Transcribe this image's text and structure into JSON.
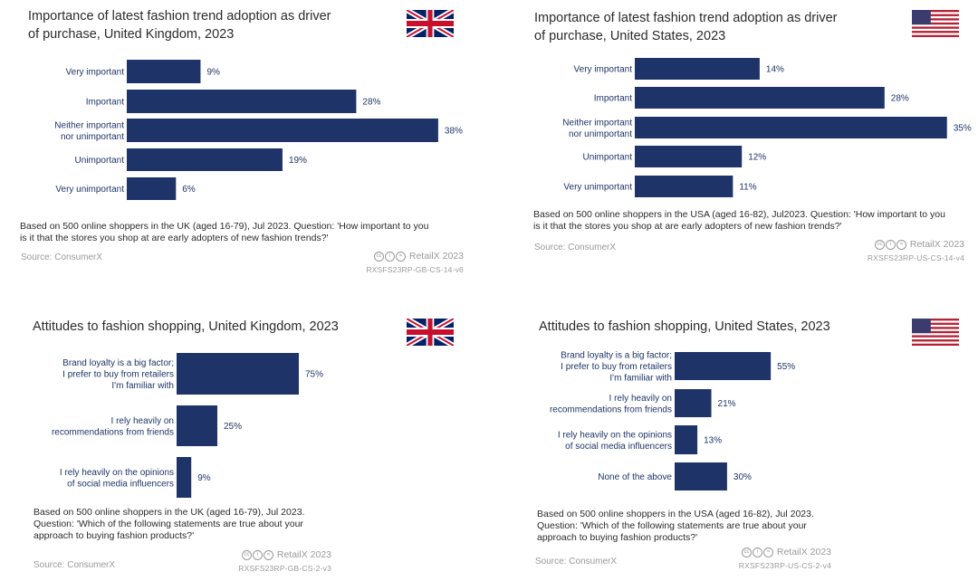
{
  "chart_data": [
    {
      "type": "bar",
      "orientation": "horizontal",
      "title": "Importance of latest fashion trend adoption as driver of purchase, United Kingdom, 2023",
      "title_lines": [
        "Importance of latest fashion trend adoption as driver",
        "of purchase, United Kingdom, 2023"
      ],
      "country": "UK",
      "categories": [
        [
          "Very important"
        ],
        [
          "Important"
        ],
        [
          "Neither important",
          "nor unimportant"
        ],
        [
          "Unimportant"
        ],
        [
          "Very unimportant"
        ]
      ],
      "values": [
        9,
        28,
        38,
        19,
        6
      ],
      "value_labels": [
        "9%",
        "28%",
        "38%",
        "19%",
        "6%"
      ],
      "xlim": [
        0,
        100
      ],
      "note_lines": [
        "Based on 500 online shoppers in the UK (aged 16-79), Jul 2023. Question: 'How important to you",
        "is it that the stores you shop at are early adopters of new fashion trends?'"
      ],
      "source": "Source: ConsumerX",
      "brand": "RetailX 2023",
      "code": "RXSFS23RP-GB-CS-14-v6"
    },
    {
      "type": "bar",
      "orientation": "horizontal",
      "title": "Importance of latest fashion trend adoption as driver of purchase, United States, 2023",
      "title_lines": [
        "Importance of latest fashion trend adoption as driver",
        "of purchase, United States, 2023"
      ],
      "country": "US",
      "categories": [
        [
          "Very important"
        ],
        [
          "Important"
        ],
        [
          "Neither important",
          "nor unimportant"
        ],
        [
          "Unimportant"
        ],
        [
          "Very unimportant"
        ]
      ],
      "values": [
        14,
        28,
        35,
        12,
        11
      ],
      "value_labels": [
        "14%",
        "28%",
        "35%",
        "12%",
        "11%"
      ],
      "xlim": [
        0,
        100
      ],
      "note_lines": [
        "Based on 500 online shoppers in the USA (aged 16-82), Jul2023. Question: 'How important to you",
        "is it that the stores you shop at are early adopters of new fashion trends?'"
      ],
      "source": "Source: ConsumerX",
      "brand": "RetailX 2023",
      "code": "RXSFS23RP-US-CS-14-v4"
    },
    {
      "type": "bar",
      "orientation": "horizontal",
      "title": "Attitudes to fashion shopping, United Kingdom, 2023",
      "title_lines": [
        "Attitudes to fashion shopping, United Kingdom, 2023"
      ],
      "country": "UK",
      "categories": [
        [
          "Brand loyalty is a big factor;",
          "I prefer to buy from retailers",
          "I'm familiar with"
        ],
        [
          "I rely heavily on",
          "recommendations from friends"
        ],
        [
          "I rely heavily on the opinions",
          "of social media influencers"
        ]
      ],
      "values": [
        75,
        25,
        9
      ],
      "value_labels": [
        "75%",
        "25%",
        "9%"
      ],
      "xlim": [
        0,
        100
      ],
      "note_lines": [
        "Based on 500 online shoppers in the UK (aged 16-79), Jul 2023.",
        "Question: 'Which of the following statements are true about your",
        "approach to buying fashion products?'"
      ],
      "source": "Source: ConsumerX",
      "brand": "RetailX 2023",
      "code": "RXSFS23RP-GB-CS-2-v3"
    },
    {
      "type": "bar",
      "orientation": "horizontal",
      "title": "Attitudes to fashion shopping, United States, 2023",
      "title_lines": [
        "Attitudes to fashion shopping, United States, 2023"
      ],
      "country": "US",
      "categories": [
        [
          "Brand loyalty is a big factor;",
          "I prefer to buy from retailers",
          "I'm familiar with"
        ],
        [
          "I rely heavily on",
          "recommendations from friends"
        ],
        [
          "I rely heavily on the opinions",
          "of social media influencers"
        ],
        [
          "None of the above"
        ]
      ],
      "values": [
        55,
        21,
        13,
        30
      ],
      "value_labels": [
        "55%",
        "21%",
        "13%",
        "30%"
      ],
      "xlim": [
        0,
        100
      ],
      "note_lines": [
        "Based on 500 online shoppers in the USA (aged 16-82), Jul 2023.",
        "Question: 'Which of the following statements are true about your",
        "approach to buying fashion products?'"
      ],
      "source": "Source: ConsumerX",
      "brand": "RetailX 2023",
      "code": "RXSFS23RP-US-CS-2-v4"
    }
  ],
  "colors": {
    "bar": "#1e3468",
    "text": "#2b2b2b",
    "muted": "#9a9a9a"
  },
  "icons": {
    "uk": "uk-flag-icon",
    "us": "us-flag-icon",
    "license": "creative-commons-icon"
  }
}
